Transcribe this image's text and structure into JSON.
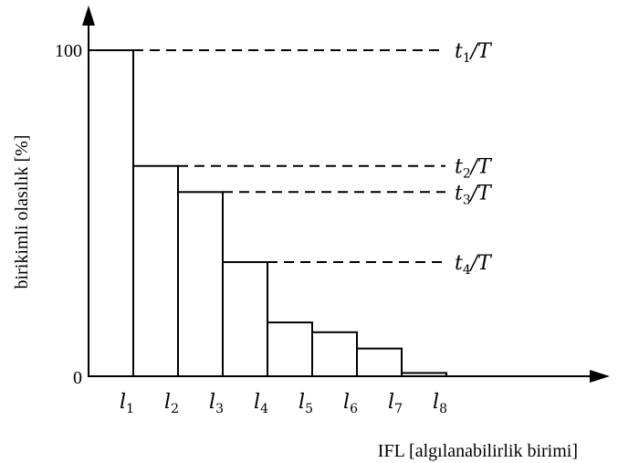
{
  "chart_data": {
    "type": "bar",
    "categories": [
      "l1",
      "l2",
      "l3",
      "l4",
      "l5",
      "l6",
      "l7",
      "l8"
    ],
    "category_labels": [
      {
        "base": "l",
        "sub": "1"
      },
      {
        "base": "l",
        "sub": "2"
      },
      {
        "base": "l",
        "sub": "3"
      },
      {
        "base": "l",
        "sub": "4"
      },
      {
        "base": "l",
        "sub": "5"
      },
      {
        "base": "l",
        "sub": "6"
      },
      {
        "base": "l",
        "sub": "7"
      },
      {
        "base": "l",
        "sub": "8"
      }
    ],
    "values": [
      100,
      64.5,
      56.5,
      35,
      16.5,
      13.5,
      8.5,
      1
    ],
    "ylabel": "birikimli olasılık  [%]",
    "xlabel": "IFL [algılanabilirlik birimi]",
    "ylim": [
      0,
      100
    ],
    "yticks": [
      "0",
      "100"
    ],
    "grid": false,
    "bar_color": "#ffffff",
    "line_color": "#000000",
    "annotations": [
      {
        "bar_index": 0,
        "base": "t",
        "sub": "1",
        "suffix": "/T"
      },
      {
        "bar_index": 1,
        "base": "t",
        "sub": "2",
        "suffix": "/T"
      },
      {
        "bar_index": 2,
        "base": "t",
        "sub": "3",
        "suffix": "/T"
      },
      {
        "bar_index": 3,
        "base": "t",
        "sub": "4",
        "suffix": "/T"
      }
    ]
  }
}
